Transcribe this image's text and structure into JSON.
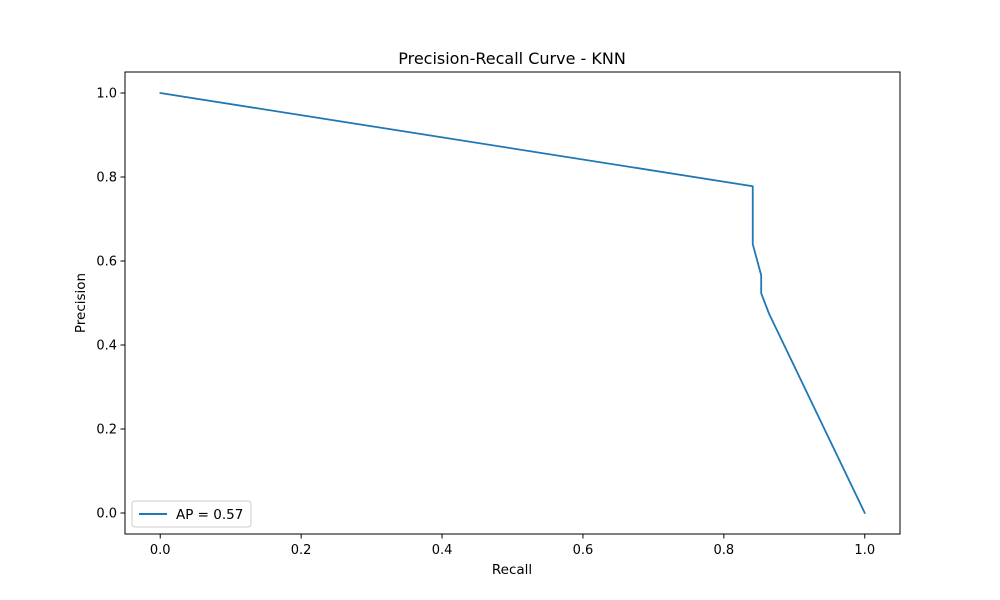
{
  "chart_data": {
    "type": "line",
    "title": "Precision-Recall Curve - KNN",
    "xlabel": "Recall",
    "ylabel": "Precision",
    "xlim": [
      -0.05,
      1.05
    ],
    "ylim": [
      -0.05,
      1.05
    ],
    "xticks": [
      0.0,
      0.2,
      0.4,
      0.6,
      0.8,
      1.0
    ],
    "xtick_labels": [
      "0.0",
      "0.2",
      "0.4",
      "0.6",
      "0.8",
      "1.0"
    ],
    "yticks": [
      0.0,
      0.2,
      0.4,
      0.6,
      0.8,
      1.0
    ],
    "ytick_labels": [
      "0.0",
      "0.2",
      "0.4",
      "0.6",
      "0.8",
      "1.0"
    ],
    "grid": false,
    "legend_position": "lower-left",
    "series": [
      {
        "name": "AP = 0.57",
        "color": "#1f77b4",
        "x": [
          0.0,
          0.841,
          0.841,
          0.853,
          0.853,
          0.864,
          1.0
        ],
        "y": [
          1.0,
          0.778,
          0.64,
          0.566,
          0.523,
          0.475,
          0.0
        ]
      }
    ]
  }
}
